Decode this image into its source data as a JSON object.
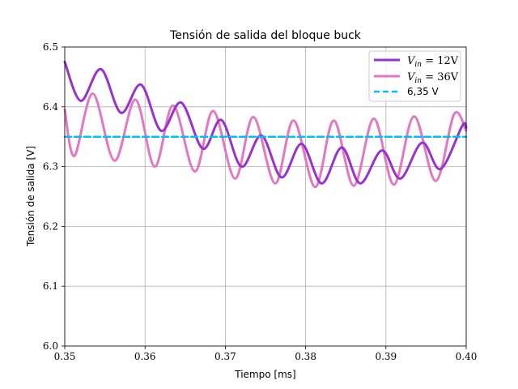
{
  "chart_data": {
    "type": "line",
    "title": "Tensión de salida del bloque buck",
    "xlabel": "Tiempo [ms]",
    "ylabel": "Tensión de salida [V]",
    "xlim": [
      0.35,
      0.4
    ],
    "ylim": [
      6.0,
      6.5
    ],
    "xticks": [
      "0.35",
      "0.36",
      "0.37",
      "0.38",
      "0.39",
      "0.40"
    ],
    "yticks": [
      "6.0",
      "6.1",
      "6.2",
      "6.3",
      "6.4",
      "6.5"
    ],
    "grid": true,
    "legend_position": "top-right",
    "series": [
      {
        "name": "V_in = 12V",
        "legend_label_main": "V",
        "legend_label_sub": "in",
        "legend_label_rest": " = 12V",
        "color": "#9932CC",
        "line_style": "solid",
        "x": [
          0.35,
          0.352,
          0.3545,
          0.357,
          0.3595,
          0.362,
          0.3645,
          0.3672,
          0.3695,
          0.372,
          0.3745,
          0.377,
          0.3795,
          0.382,
          0.3845,
          0.3868,
          0.3895,
          0.3918,
          0.3945,
          0.3968,
          0.3995,
          0.4
        ],
        "y": [
          6.475,
          6.41,
          6.463,
          6.39,
          6.437,
          6.36,
          6.407,
          6.33,
          6.378,
          6.3,
          6.352,
          6.282,
          6.338,
          6.272,
          6.332,
          6.272,
          6.327,
          6.28,
          6.34,
          6.296,
          6.368,
          6.365
        ]
      },
      {
        "name": "V_in = 36V",
        "legend_label_main": "V",
        "legend_label_sub": "in",
        "legend_label_rest": " = 36V",
        "color": "#E377C2",
        "line_style": "solid",
        "x": [
          0.35,
          0.3512,
          0.3535,
          0.3562,
          0.3588,
          0.3612,
          0.3635,
          0.3662,
          0.3685,
          0.3712,
          0.3735,
          0.3762,
          0.3785,
          0.3812,
          0.3835,
          0.386,
          0.3885,
          0.391,
          0.3935,
          0.3962,
          0.3985,
          0.4
        ],
        "y": [
          6.395,
          6.318,
          6.422,
          6.31,
          6.412,
          6.3,
          6.402,
          6.292,
          6.393,
          6.28,
          6.383,
          6.272,
          6.377,
          6.266,
          6.377,
          6.268,
          6.38,
          6.27,
          6.384,
          6.276,
          6.388,
          6.36
        ]
      },
      {
        "name": "6,35 V",
        "color": "#00BFFF",
        "line_style": "dashed",
        "x": [
          0.35,
          0.4
        ],
        "y": [
          6.35,
          6.35
        ]
      }
    ]
  }
}
